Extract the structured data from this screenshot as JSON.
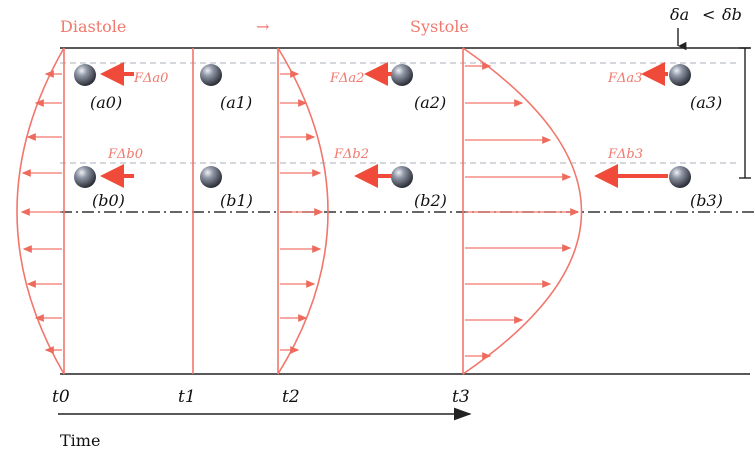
{
  "headers": {
    "diastole": "Diastole",
    "arrow": "→",
    "systole": "Systole"
  },
  "delta": {
    "a": "δa",
    "op": "<",
    "b": "δb"
  },
  "time_label": "Time",
  "time_ticks": [
    "t0",
    "t1",
    "t2",
    "t3"
  ],
  "particle_labels": {
    "a": [
      "(a0)",
      "(a1)",
      "(a2)",
      "(a3)"
    ],
    "b": [
      "(b0)",
      "(b1)",
      "(b2)",
      "(b3)"
    ]
  },
  "force_labels": {
    "a0": "FΔa0",
    "b0": "FΔb0",
    "a2": "FΔa2",
    "b2": "FΔb2",
    "a3": "FΔa3",
    "b3": "FΔb3"
  },
  "colors": {
    "profile": "#f2766b",
    "arrow": "#ee6a5c",
    "force": "#ef4a3a",
    "wall": "#222222",
    "dash": "#9aa0a6",
    "particle": "#7d8391"
  }
}
